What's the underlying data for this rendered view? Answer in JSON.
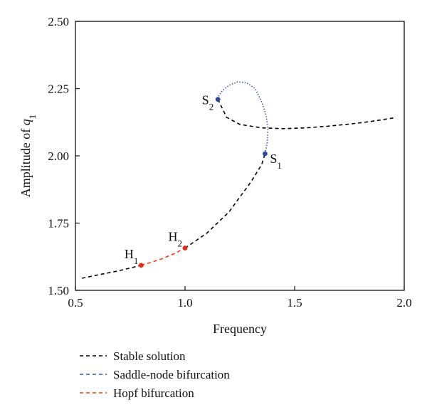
{
  "chart_data": {
    "type": "line",
    "title": "",
    "xlabel": "Frequency",
    "ylabel": "Amplitude of q1",
    "ylabel_parts": {
      "base": "Amplitude of ",
      "var": "q",
      "sub": "1"
    },
    "xlim": [
      0.5,
      2.0
    ],
    "ylim": [
      1.5,
      2.5
    ],
    "xticks": [
      "0.5",
      "1.0",
      "1.5",
      "2.0"
    ],
    "yticks": [
      "1.50",
      "1.75",
      "2.00",
      "2.25",
      "2.50"
    ],
    "grid": false,
    "legend_position": "bottom",
    "series": [
      {
        "name": "Stable solution",
        "color": "#000000",
        "style": "dashed",
        "segments": [
          {
            "x": [
              0.53,
              0.6,
              0.7,
              0.8
            ],
            "y": [
              1.545,
              1.557,
              1.573,
              1.593
            ]
          },
          {
            "x": [
              1.0,
              1.1,
              1.2,
              1.3,
              1.35,
              1.365
            ],
            "y": [
              1.657,
              1.713,
              1.791,
              1.902,
              1.968,
              2.008
            ]
          },
          {
            "x": [
              1.15,
              1.19,
              1.25,
              1.35,
              1.45,
              1.55,
              1.65,
              1.75,
              1.85,
              1.96
            ],
            "y": [
              2.21,
              2.143,
              2.117,
              2.104,
              2.101,
              2.104,
              2.11,
              2.118,
              2.128,
              2.142
            ]
          }
        ]
      },
      {
        "name": "Saddle-node bifurcation",
        "color": "#3d5aaa",
        "style": "dotted",
        "segments": [
          {
            "x": [
              1.365,
              1.375,
              1.378,
              1.37,
              1.35,
              1.32,
              1.28,
              1.24,
              1.2,
              1.17,
              1.155,
              1.15
            ],
            "y": [
              2.008,
              2.05,
              2.1,
              2.15,
              2.2,
              2.25,
              2.272,
              2.275,
              2.262,
              2.242,
              2.224,
              2.21
            ]
          }
        ]
      },
      {
        "name": "Hopf bifurcation",
        "color": "#e8401c",
        "style": "dashed",
        "segments": [
          {
            "x": [
              0.8,
              0.85,
              0.9,
              0.95,
              1.0
            ],
            "y": [
              1.593,
              1.605,
              1.619,
              1.636,
              1.657
            ]
          }
        ]
      }
    ],
    "points": [
      {
        "label": "S",
        "sub": "1",
        "x": 1.365,
        "y": 2.008,
        "color": "#2d4a9a",
        "anchor": "right"
      },
      {
        "label": "S",
        "sub": "2",
        "x": 1.15,
        "y": 2.21,
        "color": "#2d4a9a",
        "anchor": "left"
      },
      {
        "label": "H",
        "sub": "1",
        "x": 0.8,
        "y": 1.593,
        "color": "#e02d1c",
        "anchor": "above-left"
      },
      {
        "label": "H",
        "sub": "2",
        "x": 1.0,
        "y": 1.657,
        "color": "#e02d1c",
        "anchor": "above-left"
      }
    ]
  }
}
